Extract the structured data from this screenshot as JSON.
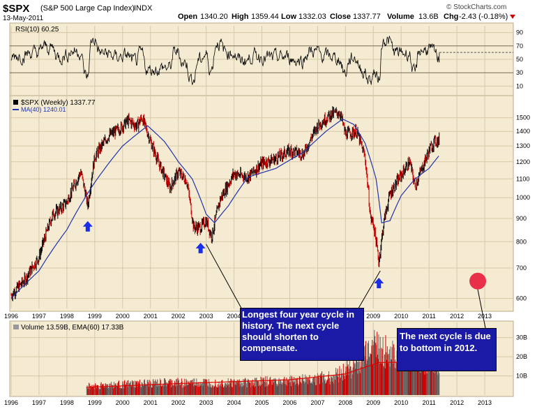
{
  "header": {
    "symbol": "$SPX",
    "name": "(S&P 500 Large Cap Index)",
    "exchange": "INDX",
    "date": "13-May-2011",
    "open_label": "Open",
    "open": "1340.20",
    "high_label": "High",
    "high": "1359.44",
    "low_label": "Low",
    "low": "1332.03",
    "close_label": "Close",
    "close": "1337.77",
    "volume_label": "Volume",
    "volume": "13.6B",
    "chg_label": "Chg",
    "chg": "-2.43 (-0.18%)",
    "watermark": "© StockCharts.com"
  },
  "rsi_panel": {
    "label": "RSI(10) 60.25",
    "ticks": [
      "90",
      "70",
      "50",
      "30",
      "10"
    ]
  },
  "price_panel": {
    "label": "$SPX (Weekly) 1337.77",
    "ma_label": "MA(40) 1240.01",
    "ticks": [
      "1500",
      "1400",
      "1300",
      "1200",
      "1100",
      "1000",
      "900",
      "800",
      "700",
      "600"
    ]
  },
  "volume_panel": {
    "label": "Volume 13.59B, EMA(60) 17.33B",
    "ticks": [
      "30B",
      "20B",
      "10B"
    ]
  },
  "years": [
    "1996",
    "1997",
    "1998",
    "1999",
    "2000",
    "2001",
    "2002",
    "2003",
    "2004",
    "2005",
    "2006",
    "2007",
    "2008",
    "2009",
    "2010",
    "2011",
    "2012",
    "2013"
  ],
  "colors": {
    "bg": "#f5ebd2",
    "up": "#000000",
    "down": "#cc0000",
    "ma": "#2233aa",
    "arrow": "#1a2ee8",
    "callout": "#1a1aa6",
    "target": "#e8304a"
  },
  "annotations": {
    "callout1": "Longest four year cycle in history. The next cycle should shorten to compensate.",
    "callout2": "The next cycle is due to bottom in 2012."
  },
  "chart_data": {
    "type": "line",
    "title": "$SPX (S&P 500 Large Cap Index) INDX",
    "xlabel": "",
    "ylabel": "",
    "ylim": [
      570,
      1620
    ],
    "x_range": [
      1996.0,
      2013.4
    ],
    "series": [
      {
        "name": "$SPX (Weekly)",
        "x": [
          1996.0,
          1996.5,
          1997.0,
          1997.5,
          1997.8,
          1998.0,
          1998.5,
          1998.75,
          1999.0,
          1999.5,
          1999.9,
          2000.2,
          2000.5,
          2000.7,
          2001.0,
          2001.3,
          2001.7,
          2002.0,
          2002.3,
          2002.55,
          2002.8,
          2003.0,
          2003.2,
          2003.5,
          2004.0,
          2004.5,
          2005.0,
          2005.5,
          2006.0,
          2006.5,
          2007.0,
          2007.5,
          2007.8,
          2008.0,
          2008.4,
          2008.7,
          2008.9,
          2009.0,
          2009.2,
          2009.4,
          2009.6,
          2010.0,
          2010.3,
          2010.5,
          2010.8,
          2011.0,
          2011.2,
          2011.37
        ],
        "values": [
          610,
          660,
          740,
          920,
          950,
          980,
          1140,
          960,
          1230,
          1370,
          1420,
          1480,
          1440,
          1500,
          1330,
          1190,
          1050,
          1140,
          1090,
          860,
          860,
          890,
          820,
          990,
          1130,
          1110,
          1190,
          1220,
          1270,
          1250,
          1440,
          1530,
          1540,
          1380,
          1400,
          1230,
          900,
          880,
          720,
          900,
          1020,
          1120,
          1200,
          1060,
          1180,
          1270,
          1330,
          1338
        ]
      },
      {
        "name": "MA(40)",
        "x": [
          1996.0,
          1997.0,
          1998.0,
          1999.0,
          2000.0,
          2000.9,
          2001.5,
          2002.0,
          2002.5,
          2003.0,
          2003.3,
          2003.8,
          2004.5,
          2005.5,
          2006.5,
          2007.3,
          2007.9,
          2008.3,
          2008.7,
          2009.1,
          2009.3,
          2009.6,
          2010.0,
          2010.5,
          2011.0,
          2011.37
        ],
        "values": [
          600,
          690,
          850,
          1080,
          1300,
          1440,
          1330,
          1200,
          1100,
          920,
          880,
          960,
          1110,
          1160,
          1260,
          1400,
          1490,
          1450,
          1320,
          1100,
          880,
          890,
          1010,
          1100,
          1160,
          1240
        ]
      }
    ],
    "rsi": {
      "name": "RSI(10)",
      "last": 60.25,
      "range": [
        0,
        100
      ],
      "levels": [
        70,
        30
      ]
    },
    "volume": {
      "name": "Volume",
      "last_label": "13.59B",
      "ema_name": "EMA(60)",
      "ema_label": "17.33B",
      "ylim_billions": [
        0,
        35
      ],
      "ema_x": [
        1998.7,
        2002.0,
        2006.0,
        2008.0,
        2009.2,
        2011.37
      ],
      "ema_values": [
        4,
        6,
        8,
        11,
        17,
        17.3
      ],
      "bar_x": [
        1998.7,
        2000.0,
        2002.0,
        2004.0,
        2006.0,
        2007.5,
        2008.5,
        2008.9,
        2009.2,
        2010.0,
        2010.5,
        2011.37
      ],
      "bar_values": [
        5,
        6,
        7,
        7,
        8,
        10,
        18,
        30,
        26,
        20,
        22,
        14
      ]
    },
    "markers": {
      "bottoms": [
        1998.75,
        2002.8,
        2009.2
      ],
      "target": {
        "x": 2012.75,
        "y": 655
      }
    }
  }
}
